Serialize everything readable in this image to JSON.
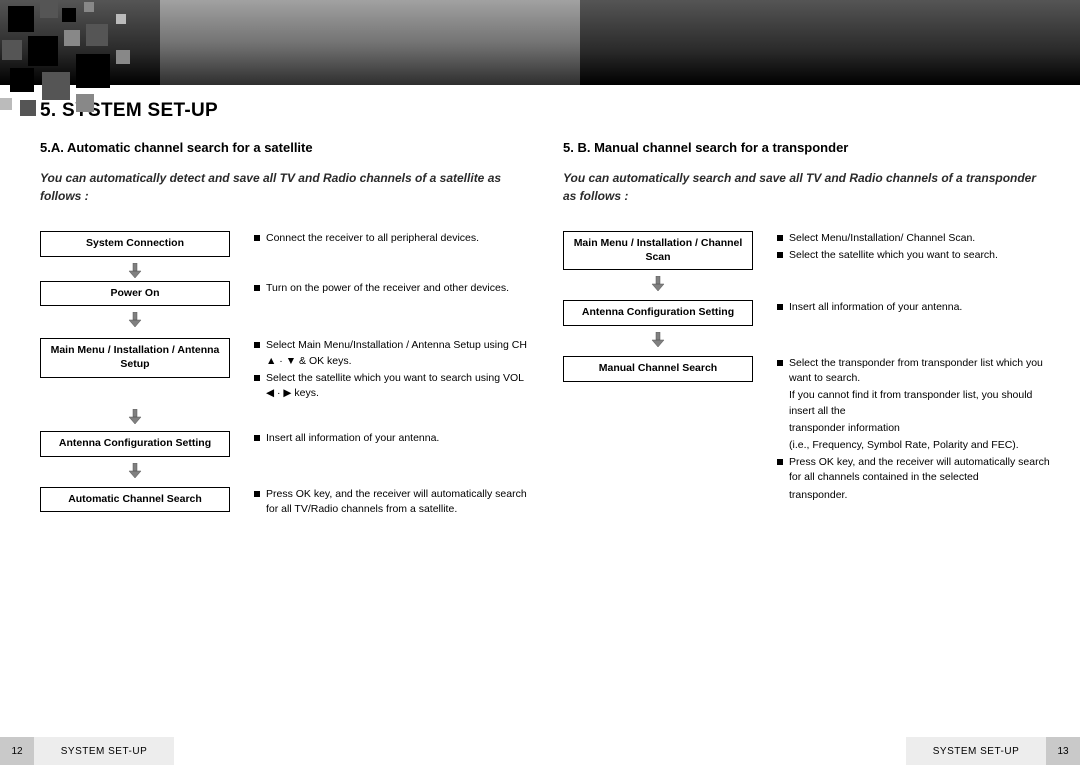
{
  "banner": {
    "bg_dark": "#2a2a2a",
    "bg_light": "#e0e0e0"
  },
  "title": "5. SYSTEM SET-UP",
  "left": {
    "subtitle": "5.A. Automatic channel search for a satellite",
    "intro": "You can automatically detect and save all TV and Radio channels of a satellite as follows :",
    "steps": [
      {
        "box": "System Connection",
        "desc": [
          {
            "b": true,
            "t": "Connect the receiver to all peripheral devices."
          }
        ]
      },
      {
        "box": "Power On",
        "desc": [
          {
            "b": true,
            "t": "Turn on the power of the receiver and other devices."
          }
        ]
      },
      {
        "box": "Main Menu / Installation / Antenna Setup",
        "desc": [
          {
            "b": true,
            "t": "Select Main Menu/Installation / Antenna Setup using CH ▲ · ▼ & OK keys."
          },
          {
            "b": true,
            "t": "Select the satellite which you want to search using VOL ◀ · ▶ keys."
          }
        ]
      },
      {
        "box": "Antenna Configuration Setting",
        "desc": [
          {
            "b": true,
            "t": "Insert all information of your antenna."
          }
        ]
      },
      {
        "box": "Automatic Channel Search",
        "desc": [
          {
            "b": true,
            "t": "Press OK key, and the receiver will automatically search for all TV/Radio channels from a satellite."
          }
        ]
      }
    ]
  },
  "right": {
    "subtitle": "5. B. Manual channel search for a transponder",
    "intro": "You can automatically search and save all TV and Radio channels of a transponder as follows :",
    "steps": [
      {
        "box": "Main Menu / Installation / Channel Scan",
        "desc": [
          {
            "b": true,
            "t": "Select Menu/Installation/ Channel Scan."
          },
          {
            "b": true,
            "t": "Select the satellite which you want to search."
          }
        ]
      },
      {
        "box": "Antenna Configuration Setting",
        "desc": [
          {
            "b": true,
            "t": "Insert all information of your antenna."
          }
        ]
      },
      {
        "box": "Manual Channel Search",
        "desc": [
          {
            "b": true,
            "t": "Select the transponder from transponder list which you want to search."
          },
          {
            "b": false,
            "t": "If you cannot find it from transponder list, you should insert all the"
          },
          {
            "b": false,
            "t": "transponder information"
          },
          {
            "b": false,
            "t": "(i.e., Frequency, Symbol Rate, Polarity and FEC)."
          },
          {
            "b": true,
            "t": "Press OK key, and the receiver will automatically search for all channels contained in the selected"
          },
          {
            "b": false,
            "t": "transponder."
          }
        ]
      }
    ]
  },
  "footer": {
    "left_num": "12",
    "left_label": "SYSTEM SET-UP",
    "right_label": "SYSTEM SET-UP",
    "right_num": "13"
  },
  "colors": {
    "text": "#000000",
    "box_border": "#000000",
    "footer_num_bg": "#c9c9c9",
    "footer_label_bg": "#ededed"
  }
}
